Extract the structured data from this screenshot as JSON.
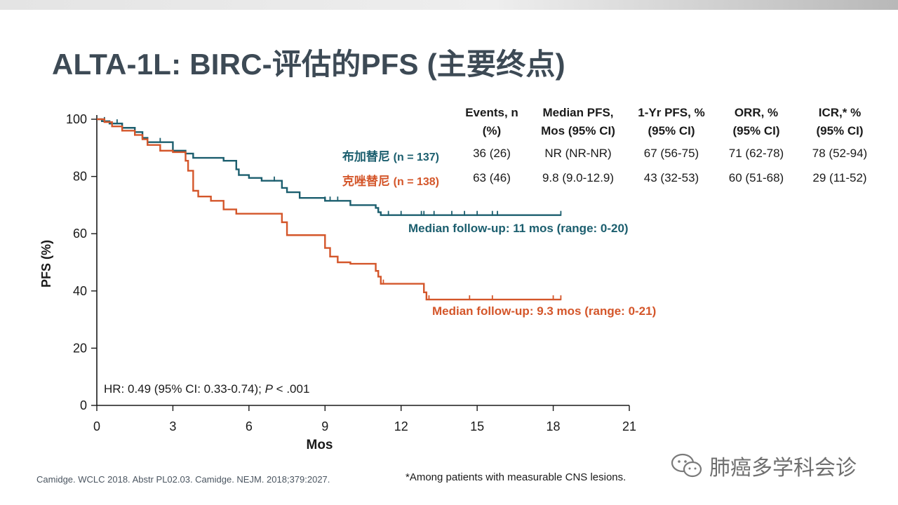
{
  "title": "ALTA-1L: BIRC-评估的PFS (主要终点)",
  "table": {
    "headers": [
      {
        "line1": "Events, n",
        "line2": "(%)"
      },
      {
        "line1": "Median PFS,",
        "line2": "Mos (95% CI)"
      },
      {
        "line1": "1-Yr PFS, %",
        "line2": "(95% CI)"
      },
      {
        "line1": "ORR, %",
        "line2": "(95% CI)"
      },
      {
        "line1": "ICR,* %",
        "line2": "(95% CI)"
      }
    ],
    "rows": [
      {
        "drug": "布加替尼",
        "n": "(n = 137)",
        "cells": [
          "36 (26)",
          "NR (NR-NR)",
          "67 (56-75)",
          "71 (62-78)",
          "78 (52-94)"
        ]
      },
      {
        "drug": "克唑替尼",
        "n": "(n = 138)",
        "cells": [
          "63 (46)",
          "9.8 (9.0-12.9)",
          "43 (32-53)",
          "60 (51-68)",
          "29 (11-52)"
        ]
      }
    ]
  },
  "annotations": {
    "followup_brig": "Median follow-up: 11 mos (range: 0-20)",
    "followup_criz": "Median follow-up: 9.3 mos (range: 0-21)",
    "hr_prefix": "HR: 0.49 (95% CI: 0.33-0.74); ",
    "hr_p": "P",
    "hr_suffix": " < .001"
  },
  "footer": {
    "citation": "Camidge. WCLC 2018. Abstr PL02.03. Camidge. NEJM. 2018;379:2027.",
    "footnote": "*Among patients with measurable CNS lesions.",
    "watermark": "肺癌多学科会诊"
  },
  "colors": {
    "brigatinib": "#1b5e6e",
    "crizotinib": "#d4562a",
    "title": "#3d4a55"
  },
  "chart_data": {
    "type": "line",
    "subtype": "kaplan-meier-step",
    "xlabel": "Mos",
    "ylabel": "PFS (%)",
    "xlim": [
      0,
      21
    ],
    "ylim": [
      0,
      100
    ],
    "xticks": [
      0,
      3,
      6,
      9,
      12,
      15,
      18,
      21
    ],
    "yticks": [
      0,
      20,
      40,
      60,
      80,
      100
    ],
    "series": [
      {
        "name": "布加替尼 (n = 137)",
        "color": "#1b5e6e",
        "x": [
          0,
          0.2,
          0.5,
          1.0,
          1.5,
          1.8,
          2.0,
          3.0,
          3.5,
          3.8,
          5.0,
          5.5,
          5.6,
          6.0,
          6.5,
          7.3,
          7.5,
          8.0,
          9.0,
          10.0,
          11.0,
          11.1,
          11.2,
          18.3
        ],
        "y": [
          100,
          99.3,
          98.5,
          97,
          95.5,
          93.5,
          92,
          89,
          88,
          86.5,
          85.5,
          82.5,
          80.5,
          79.5,
          78.5,
          76,
          74.5,
          72.5,
          71.5,
          70,
          69,
          67.5,
          66.5,
          66.5
        ],
        "censor_x": [
          0.3,
          0.8,
          2.5,
          7.0,
          9.0,
          9.2,
          9.5,
          11.5,
          12.0,
          12.8,
          12.9,
          13.3,
          14.0,
          14.5,
          15.0,
          15.6,
          15.8,
          18.3
        ]
      },
      {
        "name": "克唑替尼 (n = 138)",
        "color": "#d4562a",
        "x": [
          0,
          0.3,
          0.6,
          1.0,
          1.5,
          1.8,
          2.0,
          2.5,
          3.0,
          3.5,
          3.6,
          3.8,
          4.0,
          4.5,
          5.0,
          5.5,
          7.3,
          7.5,
          9.0,
          9.2,
          9.5,
          10.0,
          11.0,
          11.1,
          11.2,
          12.9,
          13.0,
          18.3
        ],
        "y": [
          100,
          99,
          97.5,
          96,
          94.5,
          93,
          91,
          89,
          88.5,
          85.5,
          82,
          75,
          73,
          71.5,
          68.5,
          67,
          64,
          59.5,
          55,
          52,
          50,
          49.5,
          47,
          45,
          42.5,
          39.5,
          37,
          37
        ],
        "censor_x": [
          1.5,
          11.2,
          11.3,
          13.0,
          13.1,
          14.7,
          15.6,
          18.0,
          18.3
        ]
      }
    ]
  }
}
